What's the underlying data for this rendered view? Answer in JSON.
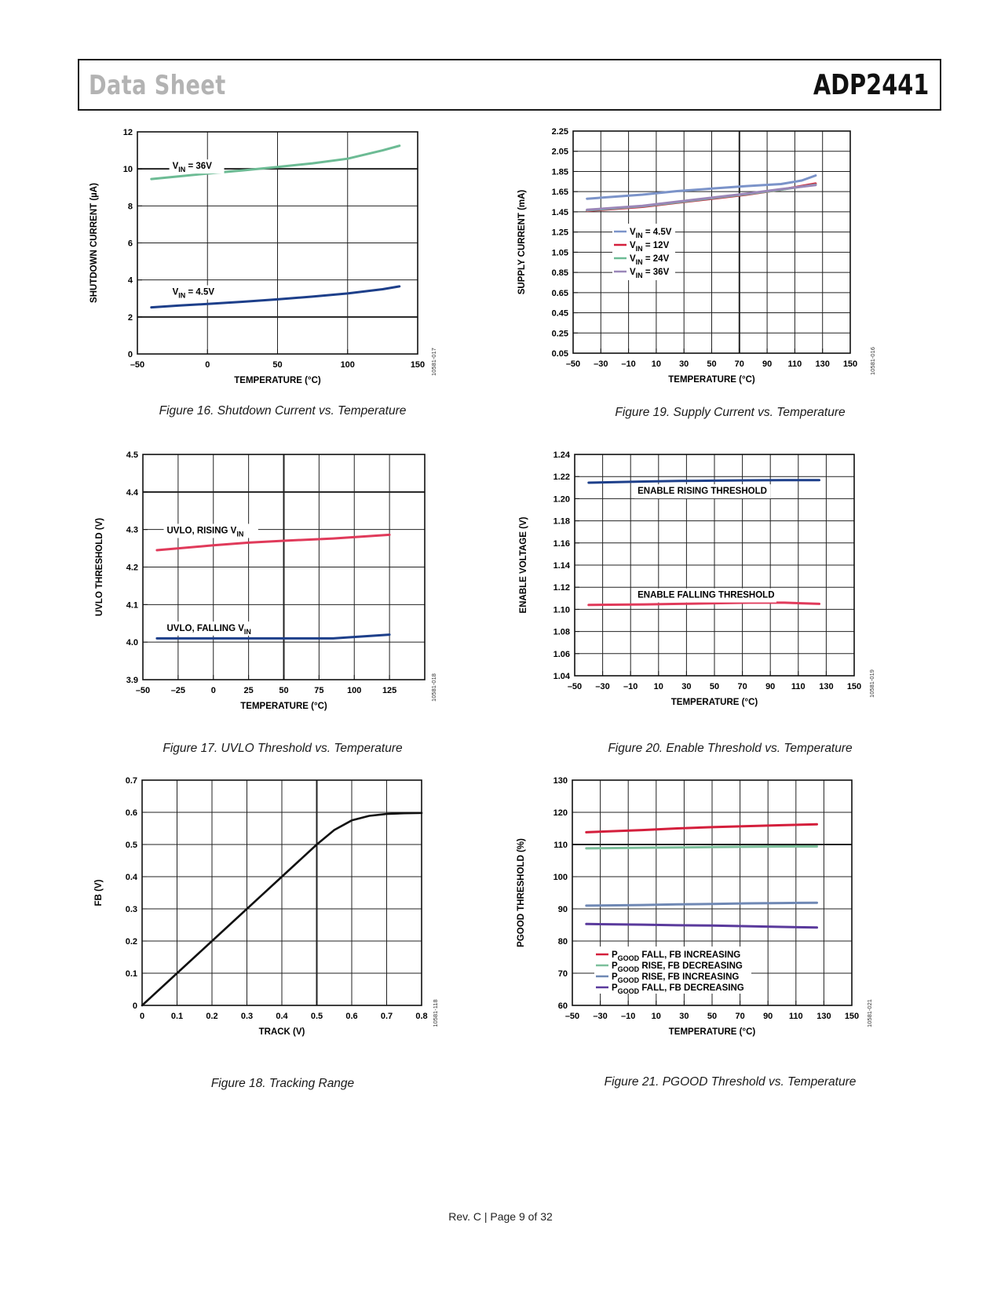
{
  "header": {
    "left": "Data Sheet",
    "right": "ADP2441"
  },
  "footer": {
    "text": "Rev. C | Page 9 of 32"
  },
  "figures": [
    {
      "caption": "Figure 16. Shutdown Current vs. Temperature",
      "code": "10581-017"
    },
    {
      "caption": "Figure 17. UVLO Threshold vs. Temperature",
      "code": "10581-018"
    },
    {
      "caption": "Figure 18. Tracking Range",
      "code": "10581-118"
    },
    {
      "caption": "Figure 19. Supply Current vs. Temperature",
      "code": "10581-016"
    },
    {
      "caption": "Figure 20. Enable Threshold vs. Temperature",
      "code": "10581-019"
    },
    {
      "caption": "Figure 21. PGOOD Threshold vs. Temperature",
      "code": "10581-021"
    }
  ],
  "colors": {
    "teal": "#6cbb94",
    "navy": "#1d3f8a",
    "red": "#d41f3c",
    "pink": "#e03a5a",
    "steel": "#7b93c9",
    "lavender": "#9a86b8",
    "slate": "#6f88b4",
    "purple": "#5a3a9c",
    "green": "#7cbf9b",
    "black": "#111111"
  },
  "chart_data": [
    {
      "id": "fig16",
      "type": "line",
      "xlabel": "TEMPERATURE (°C)",
      "ylabel": "SHUTDOWN CURRENT (µA)",
      "xlim": [
        -50,
        150
      ],
      "ylim": [
        0,
        12
      ],
      "xticks": [
        -50,
        0,
        50,
        100,
        150
      ],
      "xtick_labels": [
        "–50",
        "0",
        "50",
        "100",
        "150"
      ],
      "yticks": [
        0,
        2,
        4,
        6,
        8,
        10,
        12
      ],
      "ytick_labels": [
        "0",
        "2",
        "4",
        "6",
        "8",
        "10",
        "12"
      ],
      "xgrid": [
        0,
        50,
        100
      ],
      "ygrid": [
        2,
        4,
        6,
        8,
        10
      ],
      "bold_grid": {
        "y": [
          2,
          10
        ]
      },
      "series": [
        {
          "name": "VIN = 36V",
          "color": "#6cbb94",
          "x": [
            -40,
            -20,
            0,
            25,
            50,
            75,
            100,
            125,
            137
          ],
          "y": [
            9.45,
            9.6,
            9.75,
            9.92,
            10.1,
            10.3,
            10.55,
            11.0,
            11.25
          ]
        },
        {
          "name": "VIN = 4.5V",
          "color": "#1d3f8a",
          "x": [
            -40,
            -20,
            0,
            25,
            50,
            75,
            100,
            125,
            137
          ],
          "y": [
            2.52,
            2.62,
            2.7,
            2.82,
            2.95,
            3.1,
            3.27,
            3.5,
            3.65
          ]
        }
      ],
      "labels": [
        {
          "series": 0,
          "x": -25,
          "y": 10.0,
          "main": "V",
          "sub": "IN",
          "rest": " = 36V"
        },
        {
          "series": 1,
          "x": -25,
          "y": 3.2,
          "main": "V",
          "sub": "IN",
          "rest": " = 4.5V"
        }
      ]
    },
    {
      "id": "fig17",
      "type": "line",
      "xlabel": "TEMPERATURE (°C)",
      "ylabel": "UVLO THRESHOLD (V)",
      "xlim": [
        -50,
        150
      ],
      "ylim": [
        3.9,
        4.5
      ],
      "xticks": [
        -50,
        -25,
        0,
        25,
        50,
        75,
        100,
        125
      ],
      "xtick_labels": [
        "–50",
        "–25",
        "0",
        "25",
        "50",
        "75",
        "100",
        "125"
      ],
      "yticks": [
        3.9,
        4.0,
        4.1,
        4.2,
        4.3,
        4.4,
        4.5
      ],
      "ytick_labels": [
        "3.9",
        "4.0",
        "4.1",
        "4.2",
        "4.3",
        "4.4",
        "4.5"
      ],
      "xgrid": [
        -25,
        0,
        25,
        50,
        75,
        100,
        125
      ],
      "ygrid": [
        4.0,
        4.1,
        4.2,
        4.3,
        4.4
      ],
      "bold_grid": {
        "x": [
          50
        ],
        "y": [
          4.4
        ]
      },
      "series": [
        {
          "name": "UVLO, RISING VIN",
          "color": "#e03a5a",
          "x": [
            -40,
            0,
            25,
            50,
            85,
            125
          ],
          "y": [
            4.245,
            4.258,
            4.265,
            4.27,
            4.276,
            4.286
          ]
        },
        {
          "name": "UVLO, FALLING VIN",
          "color": "#1d3f8a",
          "x": [
            -40,
            0,
            25,
            50,
            85,
            125
          ],
          "y": [
            4.01,
            4.01,
            4.01,
            4.01,
            4.01,
            4.02
          ]
        }
      ],
      "labels": [
        {
          "series": 0,
          "x": -33,
          "y": 4.29,
          "main": "UVLO, RISING V",
          "sub": "IN",
          "rest": ""
        },
        {
          "series": 1,
          "x": -33,
          "y": 4.03,
          "main": "UVLO, FALLING V",
          "sub": "IN",
          "rest": ""
        }
      ]
    },
    {
      "id": "fig18",
      "type": "line",
      "xlabel": "TRACK (V)",
      "ylabel": "FB (V)",
      "xlim": [
        0,
        0.8
      ],
      "ylim": [
        0,
        0.7
      ],
      "xticks": [
        0,
        0.1,
        0.2,
        0.3,
        0.4,
        0.5,
        0.6,
        0.7,
        0.8
      ],
      "xtick_labels": [
        "0",
        "0.1",
        "0.2",
        "0.3",
        "0.4",
        "0.5",
        "0.6",
        "0.7",
        "0.8"
      ],
      "yticks": [
        0,
        0.1,
        0.2,
        0.3,
        0.4,
        0.5,
        0.6,
        0.7
      ],
      "ytick_labels": [
        "0",
        "0.1",
        "0.2",
        "0.3",
        "0.4",
        "0.5",
        "0.6",
        "0.7"
      ],
      "xgrid": [
        0.1,
        0.2,
        0.3,
        0.4,
        0.5,
        0.6,
        0.7
      ],
      "ygrid": [
        0.1,
        0.2,
        0.3,
        0.4,
        0.5,
        0.6
      ],
      "bold_grid": {
        "x": [
          0.5
        ]
      },
      "series": [
        {
          "name": "FB",
          "color": "#111111",
          "x": [
            0,
            0.1,
            0.2,
            0.3,
            0.4,
            0.5,
            0.55,
            0.6,
            0.65,
            0.7,
            0.75,
            0.8
          ],
          "y": [
            0,
            0.1,
            0.2,
            0.3,
            0.4,
            0.5,
            0.545,
            0.575,
            0.589,
            0.595,
            0.597,
            0.598
          ]
        }
      ]
    },
    {
      "id": "fig19",
      "type": "line",
      "xlabel": "TEMPERATURE (°C)",
      "ylabel": "SUPPLY CURRENT (mA)",
      "xlim": [
        -50,
        150
      ],
      "ylim": [
        0.05,
        2.25
      ],
      "xticks": [
        -50,
        -30,
        -10,
        10,
        30,
        50,
        70,
        90,
        110,
        130,
        150
      ],
      "xtick_labels": [
        "–50",
        "–30",
        "–10",
        "10",
        "30",
        "50",
        "70",
        "90",
        "110",
        "130",
        "150"
      ],
      "yticks": [
        0.05,
        0.25,
        0.45,
        0.65,
        0.85,
        1.05,
        1.25,
        1.45,
        1.65,
        1.85,
        2.05,
        2.25
      ],
      "ytick_labels": [
        "0.05",
        "0.25",
        "0.45",
        "0.65",
        "0.85",
        "1.05",
        "1.25",
        "1.45",
        "1.65",
        "1.85",
        "2.05",
        "2.25"
      ],
      "xgrid": [
        -30,
        -10,
        10,
        30,
        50,
        70,
        90,
        110,
        130
      ],
      "ygrid": [
        0.25,
        0.45,
        0.65,
        0.85,
        1.05,
        1.25,
        1.45,
        1.65,
        1.85,
        2.05
      ],
      "bold_grid": {
        "x": [
          70
        ]
      },
      "series": [
        {
          "name": "VIN = 4.5V",
          "color": "#7b93c9",
          "x": [
            -40,
            0,
            25,
            50,
            75,
            100,
            115,
            125
          ],
          "y": [
            1.58,
            1.62,
            1.655,
            1.68,
            1.705,
            1.725,
            1.76,
            1.81
          ]
        },
        {
          "name": "VIN = 12V",
          "color": "#d41f3c",
          "x": [
            -40,
            0,
            25,
            50,
            75,
            100,
            125
          ],
          "y": [
            1.46,
            1.5,
            1.54,
            1.58,
            1.62,
            1.67,
            1.73
          ]
        },
        {
          "name": "VIN = 24V",
          "color": "#6cbb94",
          "x": [
            -40,
            0,
            25,
            50,
            75,
            100,
            125
          ],
          "y": [
            1.465,
            1.505,
            1.545,
            1.585,
            1.625,
            1.67,
            1.72
          ]
        },
        {
          "name": "VIN = 36V",
          "color": "#9a86b8",
          "x": [
            -40,
            0,
            25,
            50,
            75,
            100,
            125
          ],
          "y": [
            1.47,
            1.51,
            1.55,
            1.59,
            1.63,
            1.675,
            1.715
          ]
        }
      ],
      "legend": [
        {
          "series": 0,
          "main": "V",
          "sub": "IN",
          "rest": " = 4.5V"
        },
        {
          "series": 1,
          "main": "V",
          "sub": "IN",
          "rest": " = 12V"
        },
        {
          "series": 2,
          "main": "V",
          "sub": "IN",
          "rest": " = 24V"
        },
        {
          "series": 3,
          "main": "V",
          "sub": "IN",
          "rest": " = 36V"
        }
      ]
    },
    {
      "id": "fig20",
      "type": "line",
      "xlabel": "TEMPERATURE (°C)",
      "ylabel": "ENABLE VOLTAGE (V)",
      "xlim": [
        -50,
        150
      ],
      "ylim": [
        1.04,
        1.24
      ],
      "xticks": [
        -50,
        -30,
        -10,
        10,
        30,
        50,
        70,
        90,
        110,
        130,
        150
      ],
      "xtick_labels": [
        "–50",
        "–30",
        "–10",
        "10",
        "30",
        "50",
        "70",
        "90",
        "110",
        "130",
        "150"
      ],
      "yticks": [
        1.04,
        1.06,
        1.08,
        1.1,
        1.12,
        1.14,
        1.16,
        1.18,
        1.2,
        1.22,
        1.24
      ],
      "ytick_labels": [
        "1.04",
        "1.06",
        "1.08",
        "1.10",
        "1.12",
        "1.14",
        "1.16",
        "1.18",
        "1.20",
        "1.22",
        "1.24"
      ],
      "xgrid": [
        -30,
        -10,
        10,
        30,
        50,
        70,
        90,
        110,
        130
      ],
      "ygrid": [
        1.06,
        1.08,
        1.1,
        1.12,
        1.14,
        1.16,
        1.18,
        1.2,
        1.22
      ],
      "series": [
        {
          "name": "ENABLE RISING THRESHOLD",
          "color": "#1d3f8a",
          "x": [
            -40,
            0,
            25,
            50,
            75,
            100,
            125
          ],
          "y": [
            1.2145,
            1.2155,
            1.216,
            1.2163,
            1.2166,
            1.2168,
            1.2168
          ]
        },
        {
          "name": "ENABLE FALLING THRESHOLD",
          "color": "#e03a5a",
          "x": [
            -40,
            0,
            25,
            50,
            75,
            100,
            125
          ],
          "y": [
            1.104,
            1.1045,
            1.105,
            1.1055,
            1.106,
            1.106,
            1.105
          ]
        }
      ],
      "labels": [
        {
          "series": 0,
          "x": -5,
          "y": 1.2045,
          "main": "ENABLE RISING THRESHOLD",
          "sub": "",
          "rest": ""
        },
        {
          "series": 1,
          "x": -5,
          "y": 1.1105,
          "main": "ENABLE FALLING THRESHOLD",
          "sub": "",
          "rest": ""
        }
      ]
    },
    {
      "id": "fig21",
      "type": "line",
      "xlabel": "TEMPERATURE (°C)",
      "ylabel": "PGOOD THRESHOLD (%)",
      "xlim": [
        -50,
        150
      ],
      "ylim": [
        60,
        130
      ],
      "xticks": [
        -50,
        -30,
        -10,
        10,
        30,
        50,
        70,
        90,
        110,
        130,
        150
      ],
      "xtick_labels": [
        "–50",
        "–30",
        "–10",
        "10",
        "30",
        "50",
        "70",
        "90",
        "110",
        "130",
        "150"
      ],
      "yticks": [
        60,
        70,
        80,
        90,
        100,
        110,
        120,
        130
      ],
      "ytick_labels": [
        "60",
        "70",
        "80",
        "90",
        "100",
        "110",
        "120",
        "130"
      ],
      "xgrid": [
        -30,
        -10,
        10,
        30,
        50,
        70,
        90,
        110,
        130
      ],
      "ygrid": [
        70,
        80,
        90,
        100,
        110,
        120
      ],
      "bold_grid": {
        "y": [
          110
        ]
      },
      "series": [
        {
          "name": "PGOOD FALL, FB INCREASING",
          "color": "#d41f3c",
          "x": [
            -40,
            0,
            25,
            50,
            75,
            100,
            125
          ],
          "y": [
            113.8,
            114.5,
            115.0,
            115.4,
            115.7,
            116.0,
            116.3
          ]
        },
        {
          "name": "PGOOD RISE, FB DECREASING",
          "color": "#7cbf9b",
          "x": [
            -40,
            0,
            25,
            50,
            75,
            100,
            125
          ],
          "y": [
            108.8,
            109.0,
            109.1,
            109.2,
            109.3,
            109.4,
            109.4
          ]
        },
        {
          "name": "PGOOD RISE, FB INCREASING",
          "color": "#6f88b4",
          "x": [
            -40,
            0,
            25,
            50,
            75,
            100,
            125
          ],
          "y": [
            91.0,
            91.2,
            91.4,
            91.5,
            91.7,
            91.8,
            91.9
          ]
        },
        {
          "name": "PGOOD FALL, FB DECREASING",
          "color": "#5a3a9c",
          "x": [
            -40,
            0,
            25,
            50,
            75,
            100,
            125
          ],
          "y": [
            85.3,
            85.1,
            84.9,
            84.8,
            84.6,
            84.4,
            84.2
          ]
        }
      ],
      "legend": [
        {
          "series": 0,
          "main": "P",
          "sub": "GOOD",
          "rest": " FALL, FB INCREASING"
        },
        {
          "series": 1,
          "main": "P",
          "sub": "GOOD",
          "rest": " RISE, FB DECREASING"
        },
        {
          "series": 2,
          "main": "P",
          "sub": "GOOD",
          "rest": " RISE, FB INCREASING"
        },
        {
          "series": 3,
          "main": "P",
          "sub": "GOOD",
          "rest": " FALL, FB DECREASING"
        }
      ]
    }
  ]
}
